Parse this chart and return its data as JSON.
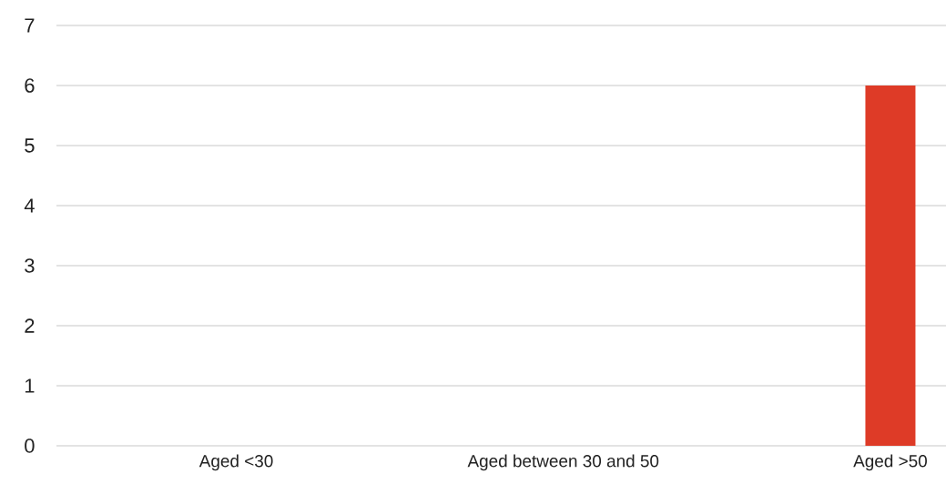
{
  "chart_data": {
    "type": "bar",
    "categories": [
      "Aged <30",
      "Aged between 30 and 50",
      "Aged >50"
    ],
    "values": [
      0,
      0,
      6
    ],
    "color": "#de3b27",
    "ylim": [
      0,
      7
    ],
    "yticks": [
      0,
      1,
      2,
      3,
      4,
      5,
      6,
      7
    ],
    "grid": "y"
  }
}
